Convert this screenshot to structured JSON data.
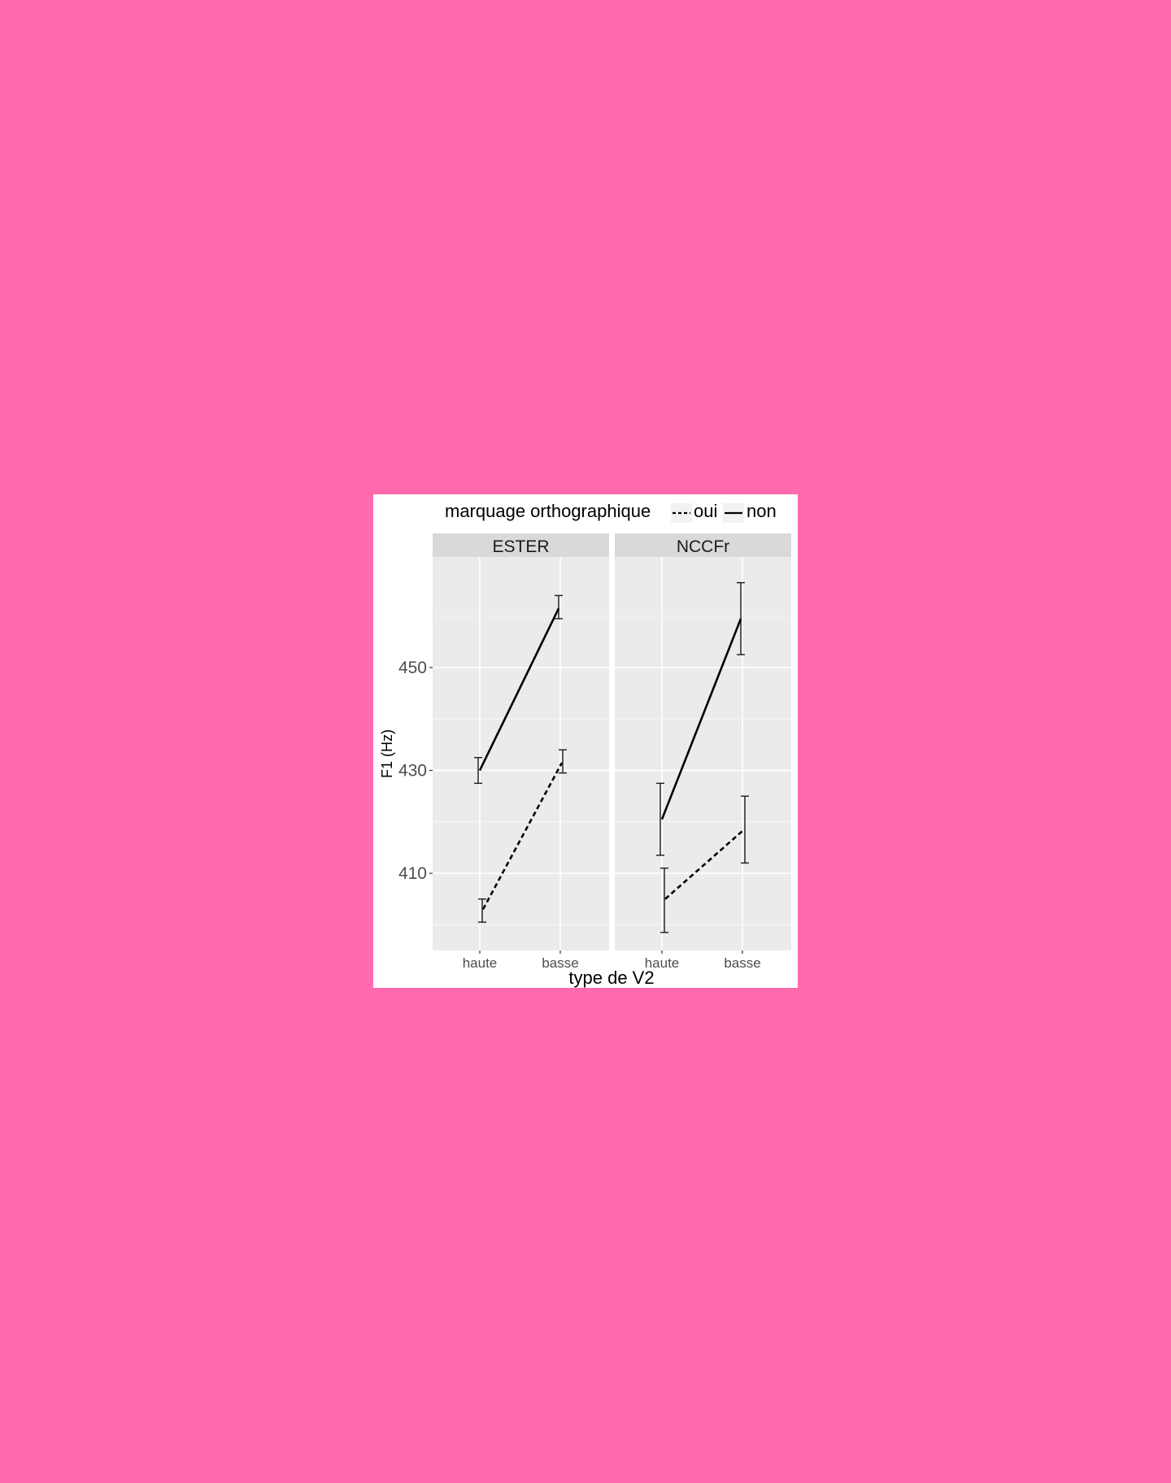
{
  "chart_data": {
    "type": "line",
    "xlabel": "type de V2",
    "ylabel": "F1 (Hz)",
    "legend": {
      "title": "marquage orthographique",
      "position": "top",
      "entries": [
        {
          "name": "oui",
          "style": "dashed"
        },
        {
          "name": "non",
          "style": "solid"
        }
      ]
    },
    "categories": [
      "haute",
      "basse"
    ],
    "y_ticks": [
      410,
      430,
      450
    ],
    "ylim": [
      395,
      471.5
    ],
    "grid": true,
    "panels": [
      {
        "title": "ESTER",
        "series": [
          {
            "name": "non",
            "values": [
              430,
              461.5
            ],
            "err_low": [
              427.5,
              459.5
            ],
            "err_high": [
              432.5,
              464
            ]
          },
          {
            "name": "oui",
            "values": [
              403,
              431.5
            ],
            "err_low": [
              400.5,
              429.5
            ],
            "err_high": [
              405,
              434
            ]
          }
        ]
      },
      {
        "title": "NCCFr",
        "series": [
          {
            "name": "non",
            "values": [
              420.5,
              459.5
            ],
            "err_low": [
              413.5,
              452.5
            ],
            "err_high": [
              427.5,
              466.5
            ]
          },
          {
            "name": "oui",
            "values": [
              405,
              418.5
            ],
            "err_low": [
              398.5,
              412
            ],
            "err_high": [
              411,
              425
            ]
          }
        ]
      }
    ],
    "colors": {
      "panel_bg": "#ebebeb",
      "strip_bg": "#d9d9d9",
      "grid": "#ffffff",
      "line": "#000000",
      "page_bg": "#ff69ad"
    }
  }
}
